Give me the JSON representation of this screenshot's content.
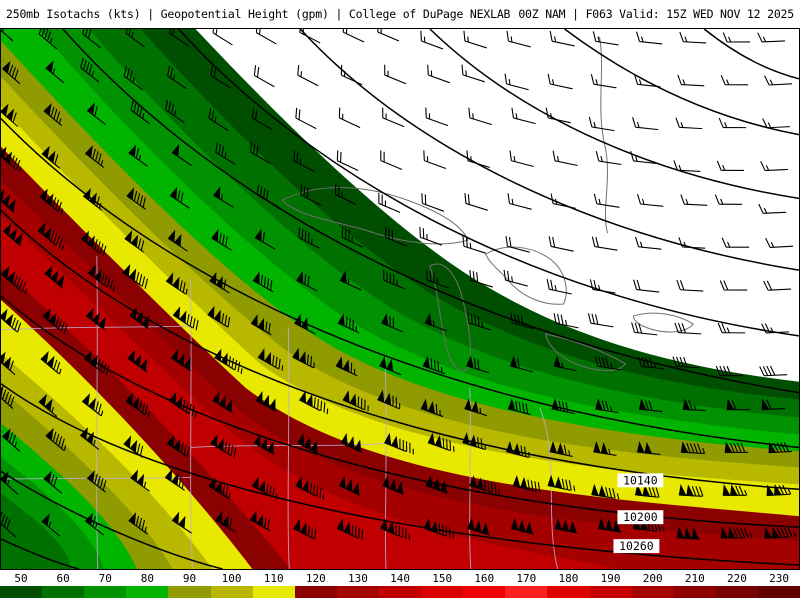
{
  "header": {
    "title_left": "250mb Isotachs (kts) | Geopotential Height (gpm) | College of DuPage NEXLAB",
    "title_right": "00Z NAM | F063 Valid: 15Z WED NOV 12 2025"
  },
  "map": {
    "contour_labels": [
      "10140",
      "10200",
      "10260"
    ]
  },
  "scale": {
    "ticks": [
      "50",
      "60",
      "70",
      "80",
      "90",
      "100",
      "110",
      "120",
      "130",
      "140",
      "150",
      "160",
      "170",
      "180",
      "190",
      "200",
      "210",
      "220",
      "230"
    ],
    "colors": [
      "#004f00",
      "#007000",
      "#009200",
      "#00b400",
      "#8f9b00",
      "#b8b800",
      "#e8e800",
      "#8b0000",
      "#a50000",
      "#c00000",
      "#d90000",
      "#f00000",
      "#ff2020",
      "#e00000",
      "#c40000",
      "#a80000",
      "#8f0000",
      "#770000",
      "#600000"
    ]
  },
  "colors": {
    "barb": "#000000",
    "contour": "#000000",
    "lake_outline": "#6f6f6f",
    "state_border": "#beaed4",
    "background": "#ffffff"
  }
}
